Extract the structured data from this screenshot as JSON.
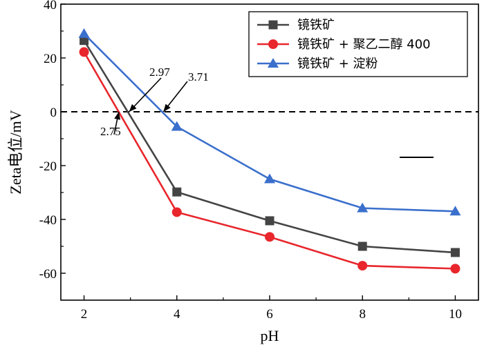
{
  "chart_data": {
    "type": "line",
    "xlabel": "pH",
    "ylabel": "Zeta电位/mV",
    "xlim": [
      1.5,
      10.5
    ],
    "ylim": [
      -70,
      40
    ],
    "x_ticks": [
      2,
      4,
      6,
      8,
      10
    ],
    "y_ticks": [
      40,
      20,
      0,
      -20,
      -40,
      -60
    ],
    "grid": false,
    "legend_position": "top-right",
    "reference_line_y": 0,
    "series": [
      {
        "name": "镜铁矿",
        "color": "#444444",
        "marker": "square",
        "x": [
          2,
          4,
          6,
          8,
          10
        ],
        "y": [
          26.5,
          -29.8,
          -40.5,
          -50,
          -52.3
        ]
      },
      {
        "name": "镜铁矿 + 聚乙二醇 400",
        "color": "#e8262c",
        "marker": "circle",
        "x": [
          2,
          4,
          6,
          8,
          10
        ],
        "y": [
          22.2,
          -37.3,
          -46.5,
          -57.2,
          -58.3
        ]
      },
      {
        "name": "镜铁矿 + 淀粉",
        "color": "#3a6fcc",
        "marker": "triangle",
        "x": [
          2,
          4,
          6,
          8,
          10
        ],
        "y": [
          29,
          -5.5,
          -25,
          -35.8,
          -37
        ]
      }
    ],
    "annotations": [
      {
        "text": "2.75",
        "x": 2.75,
        "y": 0
      },
      {
        "text": "2.97",
        "x": 2.97,
        "y": 0
      },
      {
        "text": "3.71",
        "x": 3.71,
        "y": 0
      }
    ]
  }
}
